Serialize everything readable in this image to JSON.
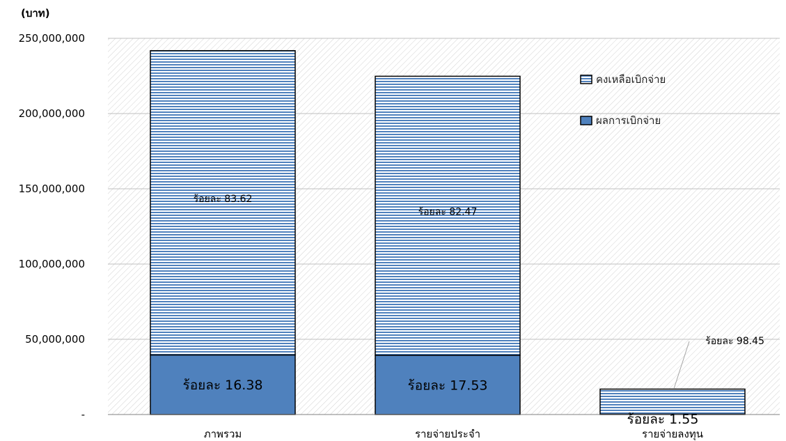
{
  "chart_data": {
    "type": "bar",
    "stacked": true,
    "y_unit_label": "(บาท)",
    "categories": [
      "ภาพรวม",
      "รายจ่ายประจำ",
      "รายจ่ายลงทุน"
    ],
    "y_ticks": [
      "250,000,000",
      "200,000,000",
      "150,000,000",
      "100,000,000",
      "50,000,000",
      "-"
    ],
    "y_tick_values": [
      250000000,
      200000000,
      150000000,
      100000000,
      50000000,
      0
    ],
    "ylim": [
      0,
      250000000
    ],
    "grid": true,
    "legend_position": "top-right",
    "series": [
      {
        "name": "ผลการเบิกจ่าย",
        "color": "#4f81bd",
        "pattern": "solid",
        "values": [
          39600000,
          39400000,
          260000
        ],
        "labels": [
          "ร้อยละ 16.38",
          "ร้อยละ 17.53",
          "ร้อยละ 1.55"
        ]
      },
      {
        "name": "คงเหลือเบิกจ่าย",
        "color": "#4f81bd",
        "pattern": "horizontal-stripes",
        "values": [
          202200000,
          185400000,
          16640000
        ],
        "labels": [
          "ร้อยละ 83.62",
          "ร้อยละ 82.47",
          "ร้อยละ 98.45"
        ]
      }
    ],
    "legend_order": [
      "คงเหลือเบิกจ่าย",
      "ผลการเบิกจ่าย"
    ]
  }
}
